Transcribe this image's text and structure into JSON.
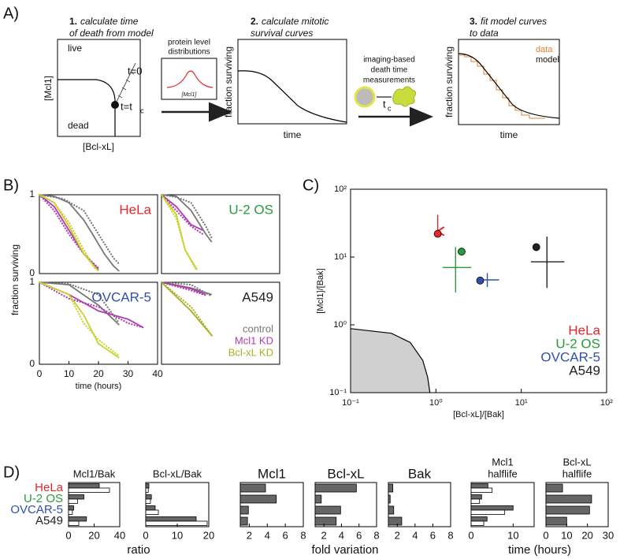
{
  "diagram": {
    "panel_label": "A)",
    "steps": [
      {
        "number": "1.",
        "lines": [
          "calculate time",
          "of death from model"
        ]
      },
      {
        "number": "2.",
        "lines": [
          "calculate mitotic",
          "survival curves"
        ]
      },
      {
        "number": "3.",
        "lines": [
          "fit model curves",
          "to data"
        ]
      }
    ],
    "box1": {
      "live": "live",
      "dead": "dead",
      "ylabel": "[Mcl1]",
      "xlabel": "[Bcl-xL]",
      "t0": "t=0",
      "tc": "t=t",
      "tc_sub": "c"
    },
    "distribution": {
      "lines": [
        "protein level",
        "distributions"
      ],
      "axis": "[Mcl1]"
    },
    "box2": {
      "ylabel": "fraction surviving",
      "xlabel": "time"
    },
    "imaging": {
      "lines": [
        "imaging-based",
        "death time",
        "measurements"
      ],
      "t": "t",
      "sub": "c"
    },
    "box3": {
      "legend": [
        "data",
        "model"
      ],
      "ylabel": "fraction surviving",
      "xlabel": "time"
    }
  },
  "panel_b": {
    "panel_label": "B)",
    "ylabel": "fraction surviving",
    "xlabel": "time (hours)"
  },
  "panel_c": {
    "panel_label": "C)"
  },
  "panel_d": {
    "panel_label": "D)",
    "categories": [
      "HeLa",
      "U-2 OS",
      "OVCAR-5",
      "A549"
    ],
    "category_colors": [
      "#e8262a",
      "#2a9a3a",
      "#3050b0",
      "#222222"
    ],
    "group_labels": [
      "ratio",
      "fold variation",
      "time (hours)"
    ]
  },
  "chart_data": [
    {
      "type": "line",
      "title": "HeLa",
      "title_color": "#e8262a",
      "xlim": [
        0,
        40
      ],
      "ylim": [
        0,
        1
      ],
      "yticks": [
        0,
        1
      ],
      "series": [
        {
          "color": "#777777",
          "style": "solid",
          "x": [
            0,
            5,
            10,
            15,
            18,
            22,
            25,
            27
          ],
          "values": [
            1,
            0.98,
            0.9,
            0.68,
            0.5,
            0.25,
            0.1,
            0.03
          ]
        },
        {
          "color": "#777777",
          "style": "dotted",
          "x": [
            0,
            8,
            15,
            20,
            25,
            27
          ],
          "values": [
            1,
            0.95,
            0.8,
            0.5,
            0.2,
            0.12
          ]
        },
        {
          "color": "#b03cb0",
          "style": "solid",
          "x": [
            0,
            5,
            10,
            15,
            20
          ],
          "values": [
            1,
            0.85,
            0.55,
            0.25,
            0.05
          ]
        },
        {
          "color": "#b03cb0",
          "style": "dotted",
          "x": [
            0,
            5,
            10,
            15,
            20
          ],
          "values": [
            1,
            0.8,
            0.5,
            0.25,
            0.07
          ]
        },
        {
          "color": "#c8d22a",
          "style": "solid",
          "x": [
            0,
            5,
            10,
            15,
            20
          ],
          "values": [
            1,
            0.9,
            0.6,
            0.25,
            0.03
          ]
        },
        {
          "color": "#c8d22a",
          "style": "dotted",
          "x": [
            0,
            5,
            10,
            15,
            19
          ],
          "values": [
            1,
            0.9,
            0.65,
            0.3,
            0.05
          ]
        }
      ]
    },
    {
      "type": "line",
      "title": "U-2 OS",
      "title_color": "#2a9a3a",
      "xlim": [
        0,
        40
      ],
      "ylim": [
        0,
        1
      ],
      "series": [
        {
          "color": "#777777",
          "style": "solid",
          "x": [
            0,
            5,
            10,
            15,
            17
          ],
          "values": [
            1,
            0.98,
            0.8,
            0.5,
            0.4
          ]
        },
        {
          "color": "#777777",
          "style": "dotted",
          "x": [
            0,
            5,
            10,
            15,
            17
          ],
          "values": [
            1,
            0.97,
            0.9,
            0.6,
            0.45
          ]
        },
        {
          "color": "#b03cb0",
          "style": "solid",
          "x": [
            0,
            5,
            10,
            14
          ],
          "values": [
            1,
            0.85,
            0.62,
            0.55
          ]
        },
        {
          "color": "#b03cb0",
          "style": "dotted",
          "x": [
            0,
            5,
            10,
            14
          ],
          "values": [
            1,
            0.8,
            0.6,
            0.5
          ]
        },
        {
          "color": "#c8d22a",
          "style": "solid",
          "x": [
            0,
            5,
            8,
            12
          ],
          "values": [
            1,
            0.75,
            0.3,
            0.05
          ]
        },
        {
          "color": "#c8d22a",
          "style": "dotted",
          "x": [
            0,
            5,
            8,
            12
          ],
          "values": [
            1,
            0.7,
            0.3,
            0.03
          ]
        }
      ]
    },
    {
      "type": "line",
      "title": "OVCAR-5",
      "title_color": "#3050b0",
      "xlim": [
        0,
        40
      ],
      "ylim": [
        0,
        1
      ],
      "xticks": [
        0,
        10,
        20,
        30,
        40
      ],
      "yticks": [
        0,
        1
      ],
      "series": [
        {
          "color": "#777777",
          "style": "solid",
          "x": [
            0,
            10,
            20,
            27
          ],
          "values": [
            1,
            0.97,
            0.72,
            0.48
          ]
        },
        {
          "color": "#777777",
          "style": "dotted",
          "x": [
            0,
            10,
            20,
            27
          ],
          "values": [
            1,
            0.98,
            0.85,
            0.5
          ]
        },
        {
          "color": "#b03cb0",
          "style": "solid",
          "x": [
            0,
            10,
            20,
            30,
            35
          ],
          "values": [
            1,
            0.85,
            0.65,
            0.55,
            0.45
          ]
        },
        {
          "color": "#b03cb0",
          "style": "dotted",
          "x": [
            0,
            10,
            20,
            30,
            35
          ],
          "values": [
            1,
            0.8,
            0.7,
            0.5,
            0.45
          ]
        },
        {
          "color": "#c8d22a",
          "style": "solid",
          "x": [
            0,
            10,
            15,
            20,
            27
          ],
          "values": [
            1,
            0.85,
            0.6,
            0.25,
            0.08
          ]
        },
        {
          "color": "#c8d22a",
          "style": "dotted",
          "x": [
            0,
            10,
            15,
            20,
            27
          ],
          "values": [
            1,
            0.85,
            0.5,
            0.3,
            0.1
          ]
        }
      ]
    },
    {
      "type": "line",
      "title": "A549",
      "title_color": "#222222",
      "xlim": [
        0,
        40
      ],
      "ylim": [
        0,
        1
      ],
      "legend": "lower right",
      "series": [
        {
          "name": "control",
          "color": "#777777",
          "style": "solid",
          "x": [
            0,
            10,
            17
          ],
          "values": [
            1,
            0.93,
            0.85
          ]
        },
        {
          "color": "#777777",
          "style": "dotted",
          "x": [
            0,
            10,
            17
          ],
          "values": [
            1,
            0.97,
            0.83
          ]
        },
        {
          "name": "Mcl1 KD",
          "color": "#b03cb0",
          "style": "solid",
          "x": [
            0,
            10,
            15
          ],
          "values": [
            1,
            0.92,
            0.85
          ]
        },
        {
          "color": "#b03cb0",
          "style": "dotted",
          "x": [
            0,
            10,
            15
          ],
          "values": [
            1,
            0.9,
            0.84
          ]
        },
        {
          "name": "Bcl-xL KD",
          "color": "#a8b020",
          "style": "solid",
          "x": [
            0,
            10,
            17
          ],
          "values": [
            1,
            0.65,
            0.35
          ]
        },
        {
          "color": "#a8b020",
          "style": "dotted",
          "x": [
            0,
            10,
            17
          ],
          "values": [
            1,
            0.7,
            0.35
          ]
        }
      ]
    },
    {
      "type": "scatter",
      "xlabel": "[Bcl-xL]/[Bak]",
      "ylabel": "[Mcl1]/[Bak]",
      "xscale": "log",
      "yscale": "log",
      "xlim": [
        0.1,
        100
      ],
      "ylim": [
        0.1,
        100
      ],
      "xticks": [
        {
          "value": 0.1,
          "label": "10⁻¹"
        },
        {
          "value": 1,
          "label": "10⁰"
        },
        {
          "value": 10,
          "label": "10¹"
        },
        {
          "value": 100,
          "label": "10²"
        }
      ],
      "yticks": [
        {
          "value": 0.1,
          "label": "10⁻¹"
        },
        {
          "value": 1,
          "label": "10⁰"
        },
        {
          "value": 10,
          "label": "10¹"
        },
        {
          "value": 100,
          "label": "10²"
        }
      ],
      "legend": "lower right",
      "region": {
        "color": "#d0d0d0",
        "x": [
          0.1,
          0.3,
          0.5,
          0.7,
          0.8,
          0.85
        ],
        "y": [
          0.88,
          0.75,
          0.55,
          0.3,
          0.17,
          0.1
        ]
      },
      "series": [
        {
          "name": "HeLa",
          "color": "#e8262a",
          "x": [
            1.05
          ],
          "values": [
            22
          ],
          "cross_x": 1.05,
          "cross_yrange": [
            24,
            42
          ],
          "arrow": true
        },
        {
          "name": "U-2 OS",
          "color": "#2a9a3a",
          "x": [
            2.0
          ],
          "values": [
            12
          ],
          "cross_x": 1.7,
          "cross_y": 7,
          "cross_xrange": [
            1.2,
            2.6
          ],
          "cross_yrange": [
            3,
            14
          ]
        },
        {
          "name": "OVCAR-5",
          "color": "#3050b0",
          "x": [
            3.3
          ],
          "values": [
            4.5
          ],
          "cross_x": 4,
          "cross_y": 4.6,
          "cross_xrange": [
            3.2,
            5.5
          ],
          "cross_yrange": [
            3.6,
            5.8
          ]
        },
        {
          "name": "A549",
          "color": "#222222",
          "x": [
            15
          ],
          "values": [
            14
          ],
          "cross_x": 20,
          "cross_y": 8.5,
          "cross_xrange": [
            13,
            32
          ],
          "cross_yrange": [
            3.5,
            20
          ]
        }
      ]
    },
    {
      "type": "barh",
      "title_lines": [
        "Mcl1/Bak"
      ],
      "xlim": [
        0,
        40
      ],
      "xticks": [
        0,
        20,
        40
      ],
      "series": [
        {
          "color": "#666666",
          "values": [
            24,
            12,
            4,
            14
          ]
        },
        {
          "color": "#ffffff",
          "values": [
            32,
            7,
            3,
            8
          ]
        }
      ]
    },
    {
      "type": "barh",
      "title_lines": [
        "Bcl-xL/Bak"
      ],
      "xlim": [
        0,
        20
      ],
      "xticks": [
        0,
        10,
        20
      ],
      "series": [
        {
          "color": "#666666",
          "values": [
            1,
            1.8,
            3,
            16
          ]
        },
        {
          "color": "#ffffff",
          "values": [
            0.8,
            1.5,
            4,
            19.5
          ]
        }
      ]
    },
    {
      "type": "barh",
      "title_lines": [
        "Mcl1"
      ],
      "xlim": [
        1,
        8
      ],
      "xticks": [
        2,
        4,
        6,
        8
      ],
      "series": [
        {
          "color": "#666666",
          "values": [
            3.8,
            5,
            1.9,
            1.8
          ]
        }
      ]
    },
    {
      "type": "barh",
      "title_lines": [
        "Bcl-xL"
      ],
      "xlim": [
        1,
        8
      ],
      "xticks": [
        2,
        4,
        6,
        8
      ],
      "series": [
        {
          "color": "#666666",
          "values": [
            5.7,
            1.7,
            3.9,
            3.4
          ]
        }
      ]
    },
    {
      "type": "barh",
      "title_lines": [
        "Bak"
      ],
      "xlim": [
        1,
        8
      ],
      "xticks": [
        2,
        4,
        6,
        8
      ],
      "series": [
        {
          "color": "#666666",
          "values": [
            1.5,
            1.2,
            1.6,
            2.5
          ]
        }
      ]
    },
    {
      "type": "barh",
      "title_lines": [
        "Mcl1",
        "halflife"
      ],
      "xlim": [
        0,
        15
      ],
      "xticks": [
        0,
        10
      ],
      "series": [
        {
          "color": "#666666",
          "values": [
            4,
            2.5,
            10,
            3.8
          ]
        },
        {
          "color": "#ffffff",
          "values": [
            5,
            2,
            8,
            3
          ]
        }
      ]
    },
    {
      "type": "barh",
      "title_lines": [
        "Bcl-xL",
        "halflife"
      ],
      "xlim": [
        0,
        30
      ],
      "xticks": [
        0,
        10,
        20,
        30
      ],
      "series": [
        {
          "color": "#666666",
          "values": [
            8,
            22,
            21,
            10
          ]
        }
      ]
    }
  ]
}
